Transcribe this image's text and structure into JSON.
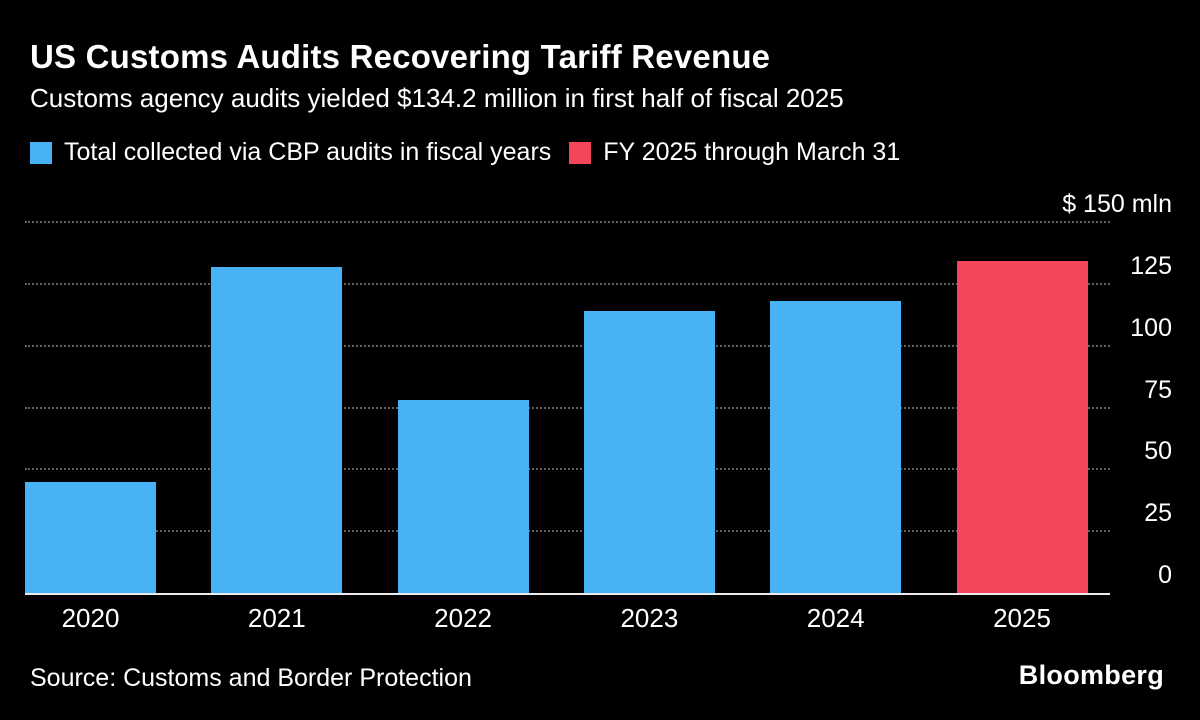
{
  "header": {
    "title": "US Customs Audits Recovering Tariff Revenue",
    "subtitle": "Customs agency audits yielded $134.2 million in first half of fiscal 2025"
  },
  "legend": [
    {
      "label": "Total collected via CBP audits in fiscal years",
      "color": "#47b3f6"
    },
    {
      "label": "FY 2025 through March 31",
      "color": "#f4465a"
    }
  ],
  "chart_data": {
    "type": "bar",
    "title": "US Customs Audits Recovering Tariff Revenue",
    "subtitle": "Customs agency audits yielded $134.2 million in first half of fiscal 2025",
    "categories": [
      "2020",
      "2021",
      "2022",
      "2023",
      "2024",
      "2025"
    ],
    "values": [
      45,
      132,
      78,
      114,
      118,
      134.2
    ],
    "bar_colors": [
      "#47b3f6",
      "#47b3f6",
      "#47b3f6",
      "#47b3f6",
      "#47b3f6",
      "#f4465a"
    ],
    "series_names": [
      "Total collected via CBP audits in fiscal years",
      "FY 2025 through March 31"
    ],
    "xlabel": "",
    "ylabel": "$ mln",
    "ylim": [
      0,
      150
    ],
    "yticks": [
      0,
      25,
      50,
      75,
      100,
      125,
      150
    ],
    "ytick_labels": [
      {
        "value": 150,
        "label": "$ 150 mln"
      },
      {
        "value": 125,
        "label": "125"
      },
      {
        "value": 100,
        "label": "100"
      },
      {
        "value": 75,
        "label": "75"
      },
      {
        "value": 50,
        "label": "50"
      },
      {
        "value": 25,
        "label": "25"
      },
      {
        "value": 0,
        "label": "0"
      }
    ],
    "grid": "horizontal-dotted",
    "legend_position": "top-left"
  },
  "footer": {
    "source": "Source: Customs and Border Protection",
    "brand": "Bloomberg"
  },
  "colors": {
    "background": "#000000",
    "text": "#ffffff",
    "blue": "#47b3f6",
    "red": "#f4465a",
    "gridline": "#606060",
    "axis_line": "#ececec"
  }
}
